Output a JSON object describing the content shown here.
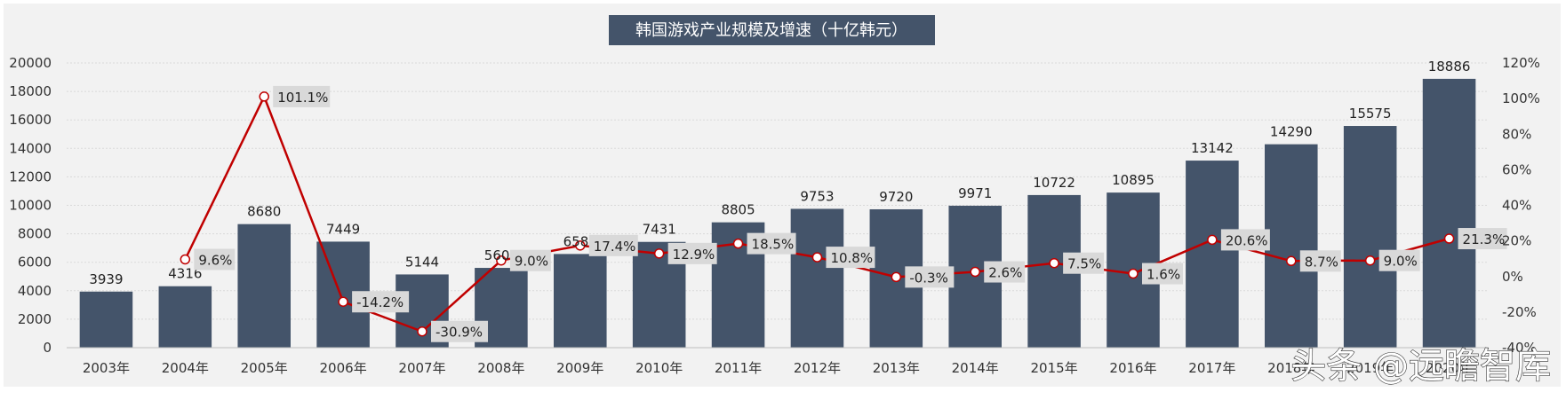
{
  "chart_data": {
    "type": "bar",
    "title": "韩国游戏产业规模及增速（十亿韩元）",
    "categories": [
      "2003年",
      "2004年",
      "2005年",
      "2006年",
      "2007年",
      "2008年",
      "2009年",
      "2010年",
      "2011年",
      "2012年",
      "2013年",
      "2014年",
      "2015年",
      "2016年",
      "2017年",
      "2018年",
      "2019年",
      "2020年"
    ],
    "series": [
      {
        "type": "bar",
        "axis": "left",
        "values": [
          3939,
          4316,
          8680,
          7449,
          5144,
          5605,
          6581,
          7431,
          8805,
          9753,
          9720,
          9971,
          10722,
          10895,
          13142,
          14290,
          15575,
          18886
        ],
        "labels": [
          "3939",
          "4316",
          "8680",
          "7449",
          "5144",
          "5605",
          "6581",
          "7431",
          "8805",
          "9753",
          "9720",
          "9971",
          "10722",
          "10895",
          "13142",
          "14290",
          "15575",
          "18886"
        ],
        "color": "#44546a"
      },
      {
        "type": "line",
        "axis": "right",
        "values": [
          null,
          9.6,
          101.1,
          -14.2,
          -30.9,
          9.0,
          17.4,
          12.9,
          18.5,
          10.8,
          -0.3,
          2.6,
          7.5,
          1.6,
          20.6,
          8.7,
          9.0,
          21.3
        ],
        "labels": [
          "",
          "9.6%",
          "101.1%",
          "-14.2%",
          "-30.9%",
          "9.0%",
          "17.4%",
          "12.9%",
          "18.5%",
          "10.8%",
          "-0.3%",
          "2.6%",
          "7.5%",
          "1.6%",
          "20.6%",
          "8.7%",
          "9.0%",
          "21.3%"
        ],
        "color": "#c00000"
      }
    ],
    "left_axis": {
      "min": 0,
      "max": 20000,
      "ticks": [
        "0",
        "2000",
        "4000",
        "6000",
        "8000",
        "10000",
        "12000",
        "14000",
        "16000",
        "18000",
        "20000"
      ]
    },
    "right_axis": {
      "min": -40,
      "max": 120,
      "ticks": [
        "-40%",
        "-20%",
        "0%",
        "20%",
        "40%",
        "60%",
        "80%",
        "100%",
        "120%"
      ]
    },
    "grid": true,
    "colors": {
      "bar": "#44546a",
      "line": "#c00000",
      "panel": "#f2f2f2",
      "title_bg": "#44546a",
      "label_bg": "#d9d9d9"
    }
  },
  "watermark": "头条 @远瞻智库"
}
